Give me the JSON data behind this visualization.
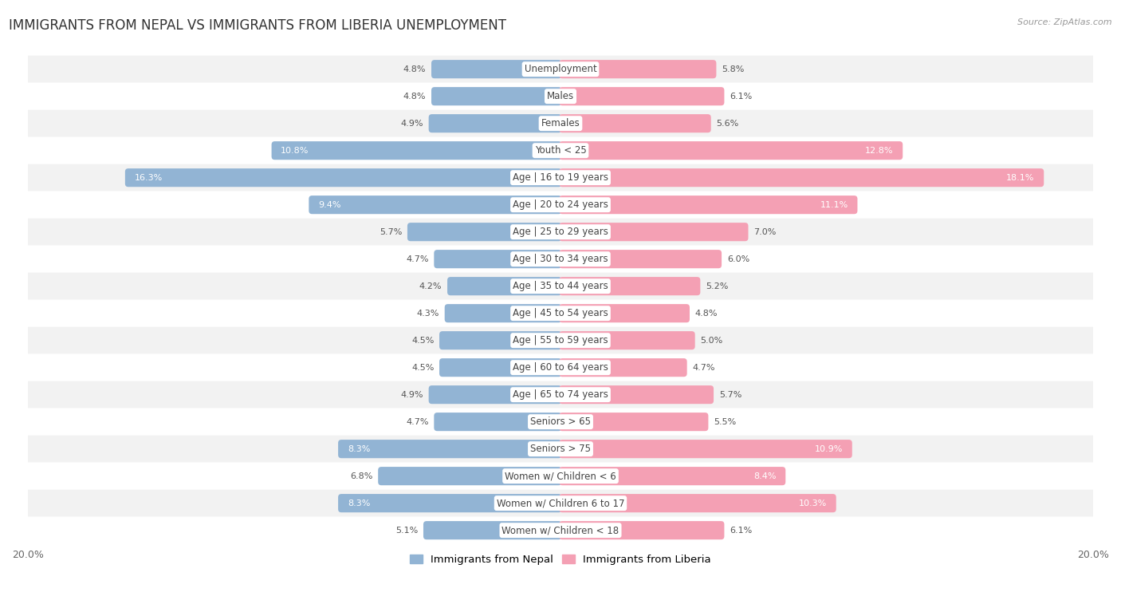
{
  "title": "IMMIGRANTS FROM NEPAL VS IMMIGRANTS FROM LIBERIA UNEMPLOYMENT",
  "source": "Source: ZipAtlas.com",
  "categories": [
    "Unemployment",
    "Males",
    "Females",
    "Youth < 25",
    "Age | 16 to 19 years",
    "Age | 20 to 24 years",
    "Age | 25 to 29 years",
    "Age | 30 to 34 years",
    "Age | 35 to 44 years",
    "Age | 45 to 54 years",
    "Age | 55 to 59 years",
    "Age | 60 to 64 years",
    "Age | 65 to 74 years",
    "Seniors > 65",
    "Seniors > 75",
    "Women w/ Children < 6",
    "Women w/ Children 6 to 17",
    "Women w/ Children < 18"
  ],
  "nepal_values": [
    4.8,
    4.8,
    4.9,
    10.8,
    16.3,
    9.4,
    5.7,
    4.7,
    4.2,
    4.3,
    4.5,
    4.5,
    4.9,
    4.7,
    8.3,
    6.8,
    8.3,
    5.1
  ],
  "liberia_values": [
    5.8,
    6.1,
    5.6,
    12.8,
    18.1,
    11.1,
    7.0,
    6.0,
    5.2,
    4.8,
    5.0,
    4.7,
    5.7,
    5.5,
    10.9,
    8.4,
    10.3,
    6.1
  ],
  "nepal_color": "#92b4d4",
  "liberia_color": "#f4a0b4",
  "nepal_label": "Immigrants from Nepal",
  "liberia_label": "Immigrants from Liberia",
  "xlim": 20.0,
  "bar_height": 0.58,
  "row_color_odd": "#f2f2f2",
  "row_color_even": "#ffffff",
  "title_fontsize": 12,
  "label_fontsize": 8.5,
  "value_fontsize": 8.0,
  "axis_label_fontsize": 9
}
